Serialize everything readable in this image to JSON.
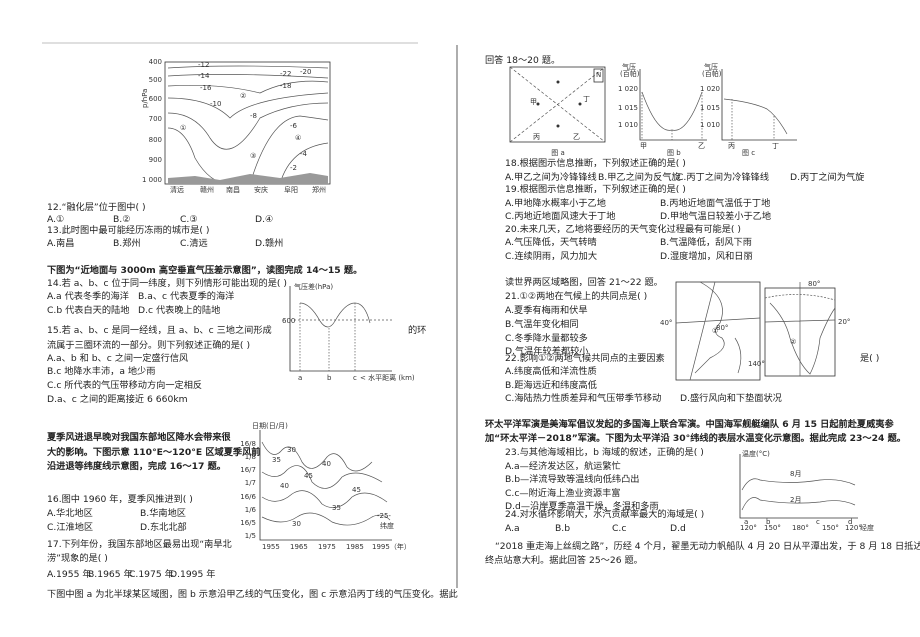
{
  "left": {
    "figure1": {
      "y_unit": "p/hPa",
      "y_ticks": [
        "400",
        "500",
        "600",
        "700",
        "800",
        "900",
        "1 000"
      ],
      "x_labels": [
        "清远",
        "赣州",
        "南昌",
        "安庆",
        "阜阳",
        "郑州"
      ],
      "contours": [
        "-12",
        "-14",
        "-22",
        "-20",
        "-16",
        "-18",
        "-10",
        "-8",
        "-6",
        "-4",
        "-2"
      ],
      "regions": [
        "①",
        "②",
        "③",
        "④"
      ]
    },
    "q12": {
      "stem": "12.“融化层”位于图中(    )",
      "options": [
        "A.①",
        "B.②",
        "C.③",
        "D.④"
      ]
    },
    "q13": {
      "stem": "13.此时图中最可能经历冻雨的城市是(    )",
      "options": [
        "A.南昌",
        "B.郑州",
        "C.清远",
        "D.赣州"
      ]
    },
    "intro14": "下图为“近地面与 3000m 高空垂直气压差示意图”，读图完成 14～15 题。",
    "q14": {
      "stem": "14.若 a、b、c 位于同一纬度，则下列情形可能出现的是(    )",
      "options": [
        "A.a 代表冬季的海洋",
        "B.a、c 代表夏季的海洋",
        "C.b 代表白天的陆地",
        "D.c 代表晚上的陆地"
      ]
    },
    "q15": {
      "stem_lines": [
        "15.若 a、b、c 是同一经线，且 a、b、c 三地之间形成",
        "的环",
        "流属于三圈环流的一部分。则下列叙述正确的是(    )"
      ],
      "options": [
        "A.a、b 和 b、c 之间一定盛行信风",
        "B.c 地降水丰沛，a 地少雨",
        "C.c 所代表的气压带移动方向一定相反",
        "D.a、c 之间的距离接近 6 660km"
      ]
    },
    "figure2": {
      "y_title": "气压差(hPa)",
      "y_tick": "600",
      "x_labels": [
        "a",
        "b",
        "c"
      ],
      "x_title": "< 水平距离 (km)"
    },
    "intro16": [
      "夏季风进退早晚对我国东部地区降水会带来很",
      "大的影响。下图示意 110°E～120°E 区域夏季风前",
      "沿进退等纬度线示意图，完成 16～17 题。"
    ],
    "q16": {
      "stem": "16.图中 1960 年，夏季风推进到(    )",
      "options": [
        "A.华北地区",
        "B.华南地区",
        "C.江淮地区",
        "D.东北北部"
      ]
    },
    "q17": {
      "stem_lines": [
        "17.下列年份，我国东部地区最易出现“南旱北",
        "涝”现象的是(    )"
      ],
      "options": [
        "A.1955 年",
        "B.1965 年",
        "C.1975 年",
        "D.1995 年"
      ]
    },
    "figure3": {
      "y_title": "日期(日/月)",
      "y_ticks": [
        "16/8",
        "1/8",
        "16/7",
        "1/7",
        "16/6",
        "1/6",
        "16/5",
        "1/5"
      ],
      "x_ticks": [
        "1955",
        "1965",
        "1975",
        "1985",
        "1995（年）"
      ],
      "contours": [
        "30",
        "35",
        "40",
        "45",
        "40",
        "45",
        "35",
        "30"
      ],
      "legend": [
        "-25-",
        "纬度"
      ]
    },
    "intro18": "下图中图 a 为北半球某区域图，图 b 示意沿甲乙线的气压变化，图 c 示意沿丙丁线的气压变化。据此"
  },
  "right": {
    "intro18_cont": "回答 18～20 题。",
    "figure_a": {
      "labels": [
        "甲",
        "丁",
        "丙",
        "乙",
        "N"
      ],
      "caption": "图 a"
    },
    "figure_b": {
      "y_title": [
        "气压",
        "(百帕)"
      ],
      "y_ticks": [
        "1 020",
        "1 015",
        "1 010"
      ],
      "x_labels": [
        "甲",
        "乙"
      ],
      "caption": "图 b"
    },
    "figure_c": {
      "y_title": [
        "气压",
        "(百帕)"
      ],
      "y_ticks": [
        "1 020",
        "1 015",
        "1 010"
      ],
      "x_labels": [
        "丙",
        "丁"
      ],
      "caption": "图 c"
    },
    "q18": {
      "stem": "18.根据图示信息推断，下列叙述正确的是(    )",
      "options": [
        "A.甲乙之间为冷锋锋线",
        "B.甲乙之间为反气旋",
        "C.丙丁之间为冷锋锋线",
        "D.丙丁之间为气旋"
      ]
    },
    "q19": {
      "stem": "19.根据图示信息推断，下列叙述正确的是(    )",
      "options": [
        "A.甲地降水概率小于乙地",
        "B.丙地近地面气温低于丁地",
        "C.丙地近地面风速大于丁地",
        "D.甲地气温日较差小于乙地"
      ]
    },
    "q20": {
      "stem": "20.未来几天，乙地将要经历的天气变化过程最有可能是(    )",
      "options": [
        "A.气压降低，天气转晴",
        "B.气温降低，刮风下雨",
        "C.连续阴雨，风力加大",
        "D.湿度增加，风和日丽"
      ]
    },
    "intro21": "读世界两区域略图，回答 21～22 题。",
    "maps": {
      "labels": [
        "40°",
        "140°",
        "80°",
        "20°"
      ],
      "regions": [
        "①",
        "②"
      ]
    },
    "q21": {
      "stem": "21.①②两地在气候上的共同点是(    )",
      "options": [
        "A.夏季有梅雨和伏旱",
        "B.气温年变化相同",
        "C.冬季降水量都较多",
        "D.气温年较差都较小"
      ]
    },
    "q22": {
      "stem_lines": [
        "22.影响①②两地气候共同点的主要因素",
        "是(    )"
      ],
      "options": [
        "A.纬度高低和洋流性质",
        "B.距海远近和纬度高低",
        "C.海陆热力性质差异和气压带季节移动",
        "D.盛行风向和下垫面状况"
      ]
    },
    "intro23": [
      "环太平洋军演是美海军倡议发起的多国海上联合军演。中国海军舰艇编队 6 月 15 日起前赴夏威夷参",
      "加“环太平洋－2018”军演。下图为太平洋沿 30°纬线的表层水温变化示意图。据此完成 23～24 题。"
    ],
    "q23": {
      "stem": "23.与其他海域相比，b 海域的叙述，正确的是(    )",
      "options": [
        "A.a—经济发达区，航运繁忙",
        "B.b—洋流导致等温线向低纬凸出",
        "C.c—附近海上渔业资源丰富",
        "D.d—沿岸夏季高温干燥，冬温和多雨"
      ]
    },
    "q24": {
      "stem": "24.对水循环影响大，水汽贡献率最大的海域是(    )",
      "options": [
        "A.a",
        "B.b",
        "C.c",
        "D.d"
      ]
    },
    "figure4": {
      "y_title": "温度(°C)",
      "series": [
        "8月",
        "2月"
      ],
      "x_ticks": [
        "120°",
        "150°",
        "180°",
        "150°",
        "120°"
      ],
      "x_title": "经度",
      "points": [
        "a",
        "b",
        "c",
        "d"
      ]
    },
    "intro25": [
      "“2018 重走海上丝绸之路”，历经 4 个月，翟墨无动力帆船队 4 月 20 日从平潭出发，于 8 月 18 日抵达",
      "终点站意大利。据此回答 25～26 题。"
    ]
  }
}
